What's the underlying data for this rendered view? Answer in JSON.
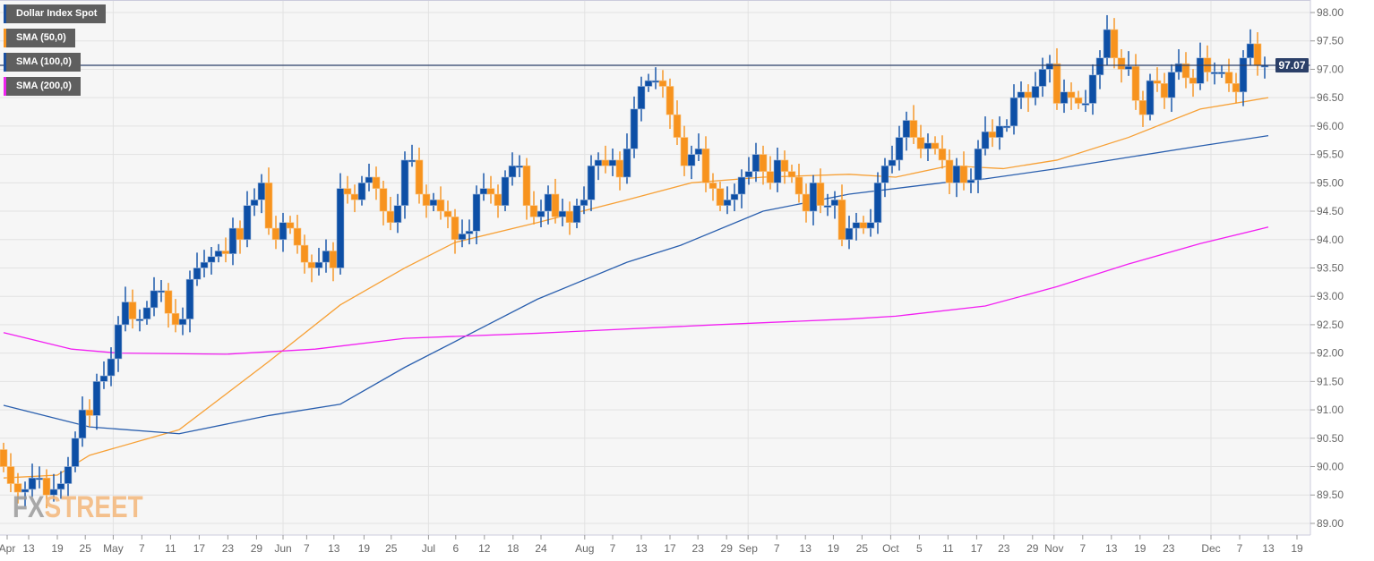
{
  "legend": [
    {
      "label": "Dollar Index Spot",
      "color": "#1a4fa0"
    },
    {
      "label": "SMA (50,0)",
      "color": "#f7931e"
    },
    {
      "label": "SMA (100,0)",
      "color": "#1a4fa0"
    },
    {
      "label": "SMA (200,0)",
      "color": "#ee22ee"
    }
  ],
  "watermark": {
    "part1": "FX",
    "part2": "STREET"
  },
  "colors": {
    "up": "#0d4fa6",
    "down": "#f7931e",
    "sma50": "#f7a035",
    "sma100": "#2a5fae",
    "sma200": "#f21ff2",
    "price_line": "#2b3f68",
    "background": "#f6f6f6",
    "grid": "#e2e2e2"
  },
  "chart_data": {
    "type": "candlestick",
    "title": "Dollar Index Spot",
    "ylim": [
      89,
      98
    ],
    "yticks": [
      "89.00",
      "89.50",
      "90.00",
      "90.50",
      "91.00",
      "91.50",
      "92.00",
      "92.50",
      "93.00",
      "93.50",
      "94.00",
      "94.50",
      "95.00",
      "95.50",
      "96.00",
      "96.50",
      "97.00",
      "97.50",
      "98.00"
    ],
    "last_price": 97.07,
    "last_price_label": "97.07",
    "xticks": [
      {
        "i": 0.5,
        "label": "Apr"
      },
      {
        "i": 3.5,
        "label": "13"
      },
      {
        "i": 7.5,
        "label": "19"
      },
      {
        "i": 11.4,
        "label": "25"
      },
      {
        "i": 15.3,
        "label": "May"
      },
      {
        "i": 19.3,
        "label": "7"
      },
      {
        "i": 23.3,
        "label": "11"
      },
      {
        "i": 27.3,
        "label": "17"
      },
      {
        "i": 31.3,
        "label": "23"
      },
      {
        "i": 35.3,
        "label": "29"
      },
      {
        "i": 39,
        "label": "Jun"
      },
      {
        "i": 42.3,
        "label": "7"
      },
      {
        "i": 46.1,
        "label": "13"
      },
      {
        "i": 50.3,
        "label": "19"
      },
      {
        "i": 54.1,
        "label": "25"
      },
      {
        "i": 59.3,
        "label": "Jul"
      },
      {
        "i": 63.1,
        "label": "6"
      },
      {
        "i": 67.1,
        "label": "12"
      },
      {
        "i": 71.1,
        "label": "18"
      },
      {
        "i": 75,
        "label": "24"
      },
      {
        "i": 81.1,
        "label": "Aug"
      },
      {
        "i": 85,
        "label": "7"
      },
      {
        "i": 89,
        "label": "13"
      },
      {
        "i": 93,
        "label": "17"
      },
      {
        "i": 96.9,
        "label": "23"
      },
      {
        "i": 100.9,
        "label": "29"
      },
      {
        "i": 103.9,
        "label": "Sep"
      },
      {
        "i": 107.9,
        "label": "7"
      },
      {
        "i": 111.9,
        "label": "13"
      },
      {
        "i": 115.8,
        "label": "19"
      },
      {
        "i": 119.8,
        "label": "25"
      },
      {
        "i": 123.8,
        "label": "Oct"
      },
      {
        "i": 127.8,
        "label": "5"
      },
      {
        "i": 131.8,
        "label": "11"
      },
      {
        "i": 135.8,
        "label": "17"
      },
      {
        "i": 139.6,
        "label": "23"
      },
      {
        "i": 143.6,
        "label": "29"
      },
      {
        "i": 146.6,
        "label": "Nov"
      },
      {
        "i": 150.6,
        "label": "7"
      },
      {
        "i": 154.6,
        "label": "13"
      },
      {
        "i": 158.6,
        "label": "19"
      },
      {
        "i": 162.6,
        "label": "23"
      },
      {
        "i": 168.5,
        "label": "Dec"
      },
      {
        "i": 172.5,
        "label": "7"
      },
      {
        "i": 176.5,
        "label": "13"
      },
      {
        "i": 180.5,
        "label": "19"
      }
    ],
    "month_starts": [
      15.3,
      39,
      59.3,
      81.1,
      103.9,
      123.8,
      146.6,
      168.5
    ],
    "first_open": 90.3,
    "closes": [
      90.0,
      89.7,
      89.55,
      89.6,
      89.8,
      89.8,
      89.5,
      89.6,
      89.7,
      90.0,
      90.5,
      91.0,
      90.9,
      91.5,
      91.6,
      91.9,
      92.5,
      92.9,
      92.6,
      92.6,
      92.8,
      93.1,
      93.1,
      92.7,
      92.5,
      92.6,
      93.3,
      93.5,
      93.6,
      93.7,
      93.8,
      93.75,
      94.2,
      94.0,
      94.6,
      94.7,
      95.0,
      94.2,
      94.0,
      94.3,
      94.2,
      93.9,
      93.6,
      93.5,
      93.6,
      93.8,
      93.5,
      94.9,
      94.8,
      94.7,
      95.0,
      95.1,
      94.9,
      94.5,
      94.3,
      94.6,
      95.4,
      95.4,
      94.8,
      94.6,
      94.7,
      94.5,
      94.4,
      94.0,
      94.1,
      94.15,
      94.8,
      94.9,
      94.8,
      94.6,
      95.1,
      95.3,
      95.3,
      94.6,
      94.4,
      94.5,
      94.8,
      94.4,
      94.5,
      94.3,
      94.6,
      94.7,
      95.3,
      95.4,
      95.3,
      95.4,
      95.1,
      95.6,
      96.3,
      96.7,
      96.8,
      96.8,
      96.7,
      96.2,
      95.8,
      95.3,
      95.5,
      95.6,
      95.0,
      94.9,
      94.6,
      94.7,
      94.8,
      95.1,
      95.2,
      95.5,
      95.2,
      95.0,
      95.4,
      95.2,
      95.1,
      94.8,
      94.5,
      95.0,
      94.6,
      94.6,
      94.7,
      94.0,
      94.2,
      94.3,
      94.2,
      94.3,
      95.0,
      95.3,
      95.4,
      95.8,
      96.1,
      95.8,
      95.6,
      95.7,
      95.6,
      95.4,
      95.0,
      95.3,
      95.0,
      95.05,
      95.6,
      95.9,
      95.8,
      96.0,
      96.0,
      96.5,
      96.6,
      96.5,
      96.7,
      97.0,
      97.1,
      96.4,
      96.6,
      96.5,
      96.4,
      96.4,
      96.9,
      97.2,
      97.7,
      97.2,
      97.0,
      97.05,
      96.45,
      96.2,
      96.8,
      96.75,
      96.5,
      96.95,
      97.1,
      96.85,
      96.75,
      97.2,
      96.95,
      96.95,
      96.95,
      96.75,
      96.6,
      97.2,
      97.45,
      97.07,
      97.07
    ],
    "series": [
      {
        "name": "SMA (50,0)",
        "points": [
          [
            0,
            89.8
          ],
          [
            7.5,
            89.85
          ],
          [
            12,
            90.2
          ],
          [
            24.5,
            90.65
          ],
          [
            37,
            91.85
          ],
          [
            47,
            92.85
          ],
          [
            56,
            93.5
          ],
          [
            63,
            93.95
          ],
          [
            74.5,
            94.3
          ],
          [
            87,
            94.7
          ],
          [
            96,
            95.0
          ],
          [
            106,
            95.1
          ],
          [
            118,
            95.15
          ],
          [
            124.5,
            95.1
          ],
          [
            132,
            95.3
          ],
          [
            139.5,
            95.25
          ],
          [
            147,
            95.4
          ],
          [
            157,
            95.8
          ],
          [
            167,
            96.3
          ],
          [
            176.5,
            96.5
          ]
        ]
      },
      {
        "name": "SMA (100,0)",
        "points": [
          [
            0,
            91.08
          ],
          [
            12,
            90.7
          ],
          [
            24.5,
            90.58
          ],
          [
            37,
            90.9
          ],
          [
            47,
            91.1
          ],
          [
            56,
            91.75
          ],
          [
            64.5,
            92.3
          ],
          [
            74.5,
            92.95
          ],
          [
            87,
            93.6
          ],
          [
            94.5,
            93.9
          ],
          [
            106,
            94.5
          ],
          [
            118,
            94.8
          ],
          [
            131,
            95.0
          ],
          [
            137,
            95.07
          ],
          [
            147,
            95.25
          ],
          [
            157,
            95.45
          ],
          [
            167,
            95.65
          ],
          [
            176.5,
            95.83
          ]
        ]
      },
      {
        "name": "SMA (200,0)",
        "points": [
          [
            0,
            92.36
          ],
          [
            9.5,
            92.07
          ],
          [
            16,
            92.0
          ],
          [
            31,
            91.98
          ],
          [
            43.5,
            92.07
          ],
          [
            56,
            92.26
          ],
          [
            74.5,
            92.35
          ],
          [
            99.5,
            92.5
          ],
          [
            118,
            92.6
          ],
          [
            124.5,
            92.65
          ],
          [
            137,
            92.83
          ],
          [
            147,
            93.17
          ],
          [
            157,
            93.57
          ],
          [
            167,
            93.93
          ],
          [
            176.5,
            94.22
          ]
        ]
      }
    ]
  }
}
